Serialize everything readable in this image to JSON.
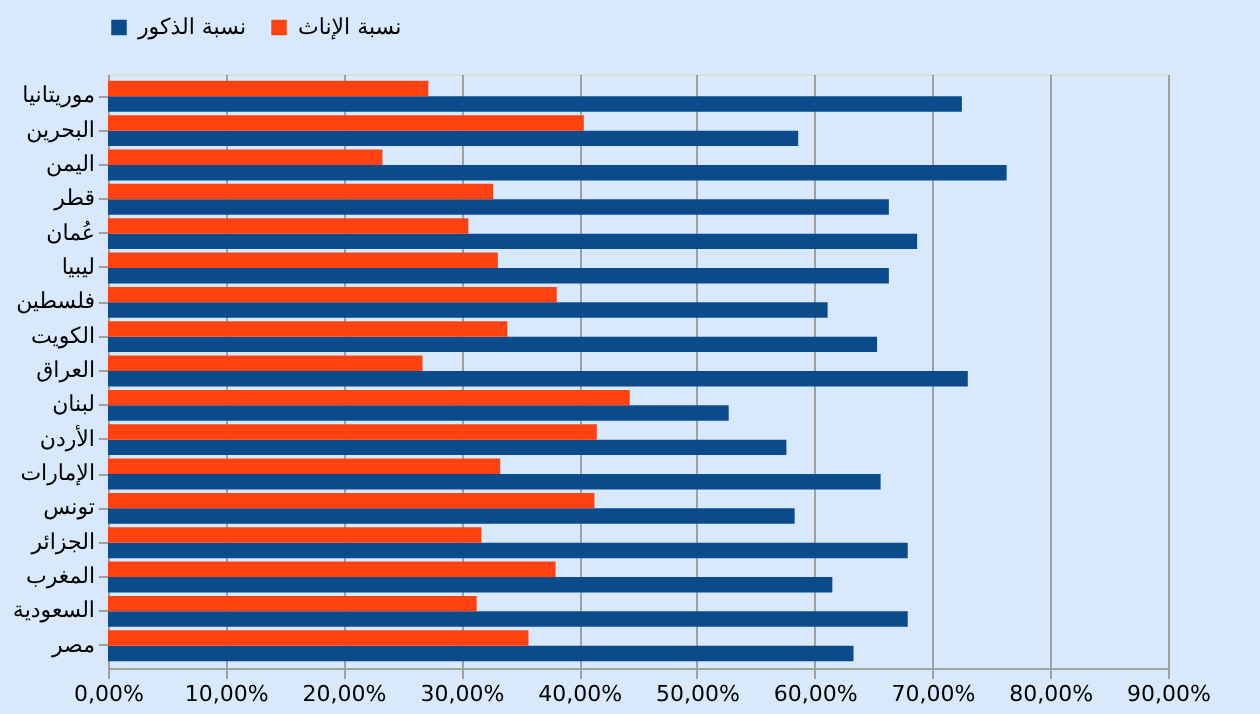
{
  "chart_data": {
    "type": "bar",
    "orientation": "horizontal",
    "categories": [
      "موريتانيا",
      "البحرين",
      "اليمن",
      "قطر",
      "عُمان",
      "ليبيا",
      "فلسطين",
      "الكويت",
      "العراق",
      "لبنان",
      "الأردن",
      "الإمارات",
      "تونس",
      "الجزائر",
      "المغرب",
      "السعودية",
      "مصر"
    ],
    "series": [
      {
        "name": "نسبة الذكور",
        "color": "#0b4a8b",
        "values": [
          72.5,
          58.6,
          76.3,
          66.3,
          68.7,
          66.3,
          61.1,
          65.3,
          73.0,
          52.7,
          57.6,
          65.6,
          58.3,
          67.9,
          61.5,
          67.9,
          63.3
        ]
      },
      {
        "name": "نسبة الإناث",
        "color": "#ff4210",
        "values": [
          27.2,
          40.4,
          23.3,
          32.7,
          30.6,
          33.1,
          38.1,
          33.9,
          26.7,
          44.3,
          41.5,
          33.3,
          41.3,
          31.7,
          38.0,
          31.3,
          35.7
        ]
      }
    ],
    "xlim": [
      0,
      90
    ],
    "xticks": [
      {
        "value": 0,
        "label": "0,00%"
      },
      {
        "value": 10,
        "label": "10,00%"
      },
      {
        "value": 20,
        "label": "20,00%"
      },
      {
        "value": 30,
        "label": "30,00%"
      },
      {
        "value": 40,
        "label": "40,00%"
      },
      {
        "value": 50,
        "label": "50,00%"
      },
      {
        "value": 60,
        "label": "60,00%"
      },
      {
        "value": 70,
        "label": "70,00%"
      },
      {
        "value": 80,
        "label": "80,00%"
      },
      {
        "value": 90,
        "label": "90,00%"
      }
    ],
    "grid": "x",
    "legend": "top"
  }
}
